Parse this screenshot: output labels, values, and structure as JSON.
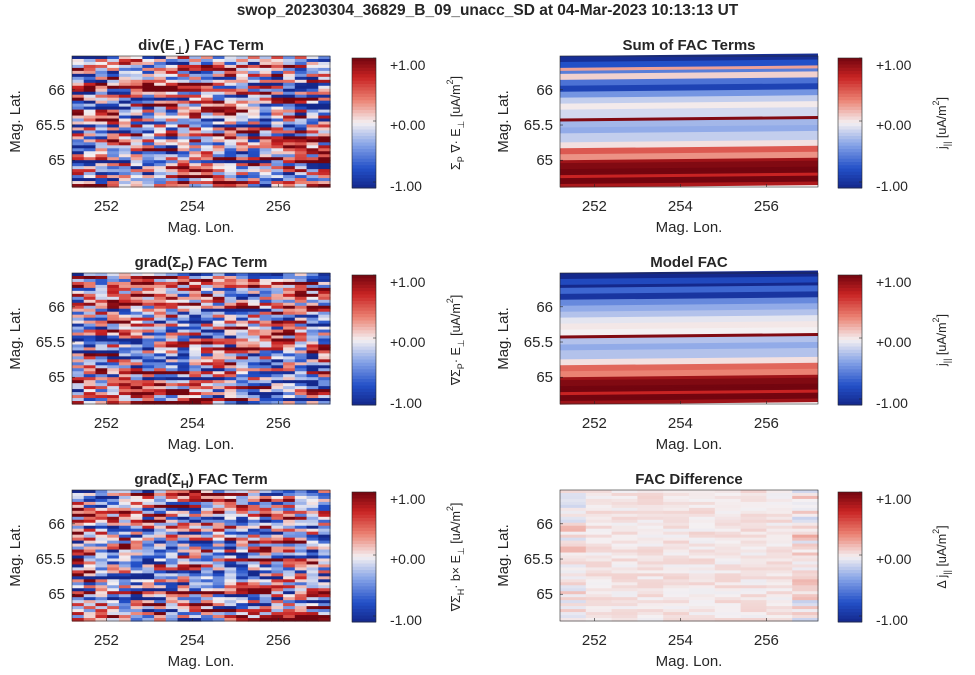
{
  "suptitle": "swop_20230304_36829_B_09_unacc_SD at 04-Mar-2023 10:13:13 UT",
  "chart_data": [
    {
      "type": "heatmap",
      "title": "div(E⊥) FAC Term",
      "title_parts": [
        "div(E",
        "⊥",
        ") FAC Term"
      ],
      "xlabel": "Mag. Lon.",
      "ylabel": "Mag. Lat.",
      "xlim": [
        251.2,
        257.2
      ],
      "ylim": [
        64.62,
        66.48
      ],
      "xticks": [
        252,
        254,
        256
      ],
      "yticks": [
        65,
        65.5,
        66
      ],
      "colorbar": {
        "ticks": [
          "+1.00",
          "+0.00",
          "-1.00"
        ],
        "range": [
          -1,
          1
        ],
        "colormap": "blue-white-red",
        "label": "ΣP ∇· E⊥ [uA/m2]",
        "label_parts": [
          "Σ",
          "P",
          " ∇· E",
          "⊥",
          " [uA/m",
          "2",
          "]"
        ]
      },
      "pattern": "turbulent"
    },
    {
      "type": "heatmap",
      "title": "Sum of FAC Terms",
      "title_parts": [
        "Sum of FAC Terms"
      ],
      "xlabel": "Mag. Lon.",
      "ylabel": "Mag. Lat.",
      "xlim": [
        251.2,
        257.2
      ],
      "ylim": [
        64.62,
        66.48
      ],
      "xticks": [
        252,
        254,
        256
      ],
      "yticks": [
        65,
        65.5,
        66
      ],
      "colorbar": {
        "ticks": [
          "+1.00",
          "+0.00",
          "-1.00"
        ],
        "range": [
          -1,
          1
        ],
        "colormap": "blue-white-red",
        "label": "j|| [uA/m2]",
        "label_parts": [
          "j",
          "||",
          " [uA/m",
          "2",
          "]"
        ]
      },
      "pattern": "bands",
      "bands": [
        {
          "lat": 66.42,
          "value": -0.95
        },
        {
          "lat": 66.36,
          "value": -0.7
        },
        {
          "lat": 66.3,
          "value": 0.25
        },
        {
          "lat": 66.24,
          "value": -0.5
        },
        {
          "lat": 66.18,
          "value": 0.1
        },
        {
          "lat": 66.1,
          "value": -0.55
        },
        {
          "lat": 66.02,
          "value": -0.8
        },
        {
          "lat": 65.95,
          "value": -0.4
        },
        {
          "lat": 65.85,
          "value": -0.15
        },
        {
          "lat": 65.75,
          "value": 0.02
        },
        {
          "lat": 65.65,
          "value": -0.1
        },
        {
          "lat": 65.56,
          "value": 0.95
        },
        {
          "lat": 65.5,
          "value": -0.25
        },
        {
          "lat": 65.42,
          "value": -0.3
        },
        {
          "lat": 65.3,
          "value": -0.15
        },
        {
          "lat": 65.2,
          "value": 0.05
        },
        {
          "lat": 65.12,
          "value": 0.5
        },
        {
          "lat": 65.05,
          "value": 0.3
        },
        {
          "lat": 64.98,
          "value": 0.85
        },
        {
          "lat": 64.9,
          "value": 0.95
        },
        {
          "lat": 64.82,
          "value": 1.0
        },
        {
          "lat": 64.76,
          "value": 0.7
        },
        {
          "lat": 64.7,
          "value": 1.0
        },
        {
          "lat": 64.64,
          "value": 0.8
        }
      ]
    },
    {
      "type": "heatmap",
      "title": "grad(ΣP) FAC Term",
      "title_parts": [
        "grad(Σ",
        "P",
        ") FAC Term"
      ],
      "xlabel": "Mag. Lon.",
      "ylabel": "Mag. Lat.",
      "xlim": [
        251.2,
        257.2
      ],
      "ylim": [
        64.62,
        66.48
      ],
      "xticks": [
        252,
        254,
        256
      ],
      "yticks": [
        65,
        65.5,
        66
      ],
      "colorbar": {
        "ticks": [
          "+1.00",
          "+0.00",
          "-1.00"
        ],
        "range": [
          -1,
          1
        ],
        "colormap": "blue-white-red",
        "label": "∇ΣP· E⊥ [uA/m2]",
        "label_parts": [
          "∇Σ",
          "P",
          "· E",
          "⊥",
          " [uA/m",
          "2",
          "]"
        ]
      },
      "pattern": "turbulent"
    },
    {
      "type": "heatmap",
      "title": "Model FAC",
      "title_parts": [
        "Model FAC"
      ],
      "xlabel": "Mag. Lon.",
      "ylabel": "Mag. Lat.",
      "xlim": [
        251.2,
        257.2
      ],
      "ylim": [
        64.62,
        66.48
      ],
      "xticks": [
        252,
        254,
        256
      ],
      "yticks": [
        65,
        65.5,
        66
      ],
      "colorbar": {
        "ticks": [
          "+1.00",
          "+0.00",
          "-1.00"
        ],
        "range": [
          -1,
          1
        ],
        "colormap": "blue-white-red",
        "label": "j|| [uA/m2]",
        "label_parts": [
          "j",
          "||",
          " [uA/m",
          "2",
          "]"
        ]
      },
      "pattern": "bands",
      "bands": [
        {
          "lat": 66.42,
          "value": -1.0
        },
        {
          "lat": 66.36,
          "value": -0.75
        },
        {
          "lat": 66.3,
          "value": -1.0
        },
        {
          "lat": 66.22,
          "value": -0.6
        },
        {
          "lat": 66.14,
          "value": -0.9
        },
        {
          "lat": 66.06,
          "value": -0.45
        },
        {
          "lat": 65.98,
          "value": -0.3
        },
        {
          "lat": 65.9,
          "value": -0.2
        },
        {
          "lat": 65.8,
          "value": -0.05
        },
        {
          "lat": 65.7,
          "value": 0.03
        },
        {
          "lat": 65.62,
          "value": 0.0
        },
        {
          "lat": 65.56,
          "value": 0.95
        },
        {
          "lat": 65.5,
          "value": -0.2
        },
        {
          "lat": 65.42,
          "value": -0.3
        },
        {
          "lat": 65.3,
          "value": -0.2
        },
        {
          "lat": 65.2,
          "value": 0.05
        },
        {
          "lat": 65.12,
          "value": 0.45
        },
        {
          "lat": 65.05,
          "value": 0.35
        },
        {
          "lat": 64.98,
          "value": 0.85
        },
        {
          "lat": 64.9,
          "value": 0.95
        },
        {
          "lat": 64.82,
          "value": 1.0
        },
        {
          "lat": 64.76,
          "value": 0.7
        },
        {
          "lat": 64.7,
          "value": 1.0
        },
        {
          "lat": 64.64,
          "value": 0.85
        }
      ]
    },
    {
      "type": "heatmap",
      "title": "grad(ΣH) FAC Term",
      "title_parts": [
        "grad(Σ",
        "H",
        ") FAC Term"
      ],
      "xlabel": "Mag. Lon.",
      "ylabel": "Mag. Lat.",
      "xlim": [
        251.2,
        257.2
      ],
      "ylim": [
        64.62,
        66.48
      ],
      "xticks": [
        252,
        254,
        256
      ],
      "yticks": [
        65,
        65.5,
        66
      ],
      "colorbar": {
        "ticks": [
          "+1.00",
          "+0.00",
          "-1.00"
        ],
        "range": [
          -1,
          1
        ],
        "colormap": "blue-white-red",
        "label": "∇ΣH· b× E⊥ [uA/m2]",
        "label_parts": [
          "∇Σ",
          "H",
          "· b× E",
          "⊥",
          " [uA/m",
          "2",
          "]"
        ]
      },
      "pattern": "turbulent"
    },
    {
      "type": "heatmap",
      "title": "FAC Difference",
      "title_parts": [
        "FAC Difference"
      ],
      "xlabel": "Mag. Lon.",
      "ylabel": "Mag. Lat.",
      "xlim": [
        251.2,
        257.2
      ],
      "ylim": [
        64.62,
        66.48
      ],
      "xticks": [
        252,
        254,
        256
      ],
      "yticks": [
        65,
        65.5,
        66
      ],
      "colorbar": {
        "ticks": [
          "+1.00",
          "+0.00",
          "-1.00"
        ],
        "range": [
          -1,
          1
        ],
        "colormap": "blue-white-red",
        "label": "Δ j|| [uA/m2]",
        "label_parts": [
          "Δ j",
          "||",
          " [uA/m",
          "2",
          "]"
        ]
      },
      "pattern": "near-zero"
    }
  ]
}
